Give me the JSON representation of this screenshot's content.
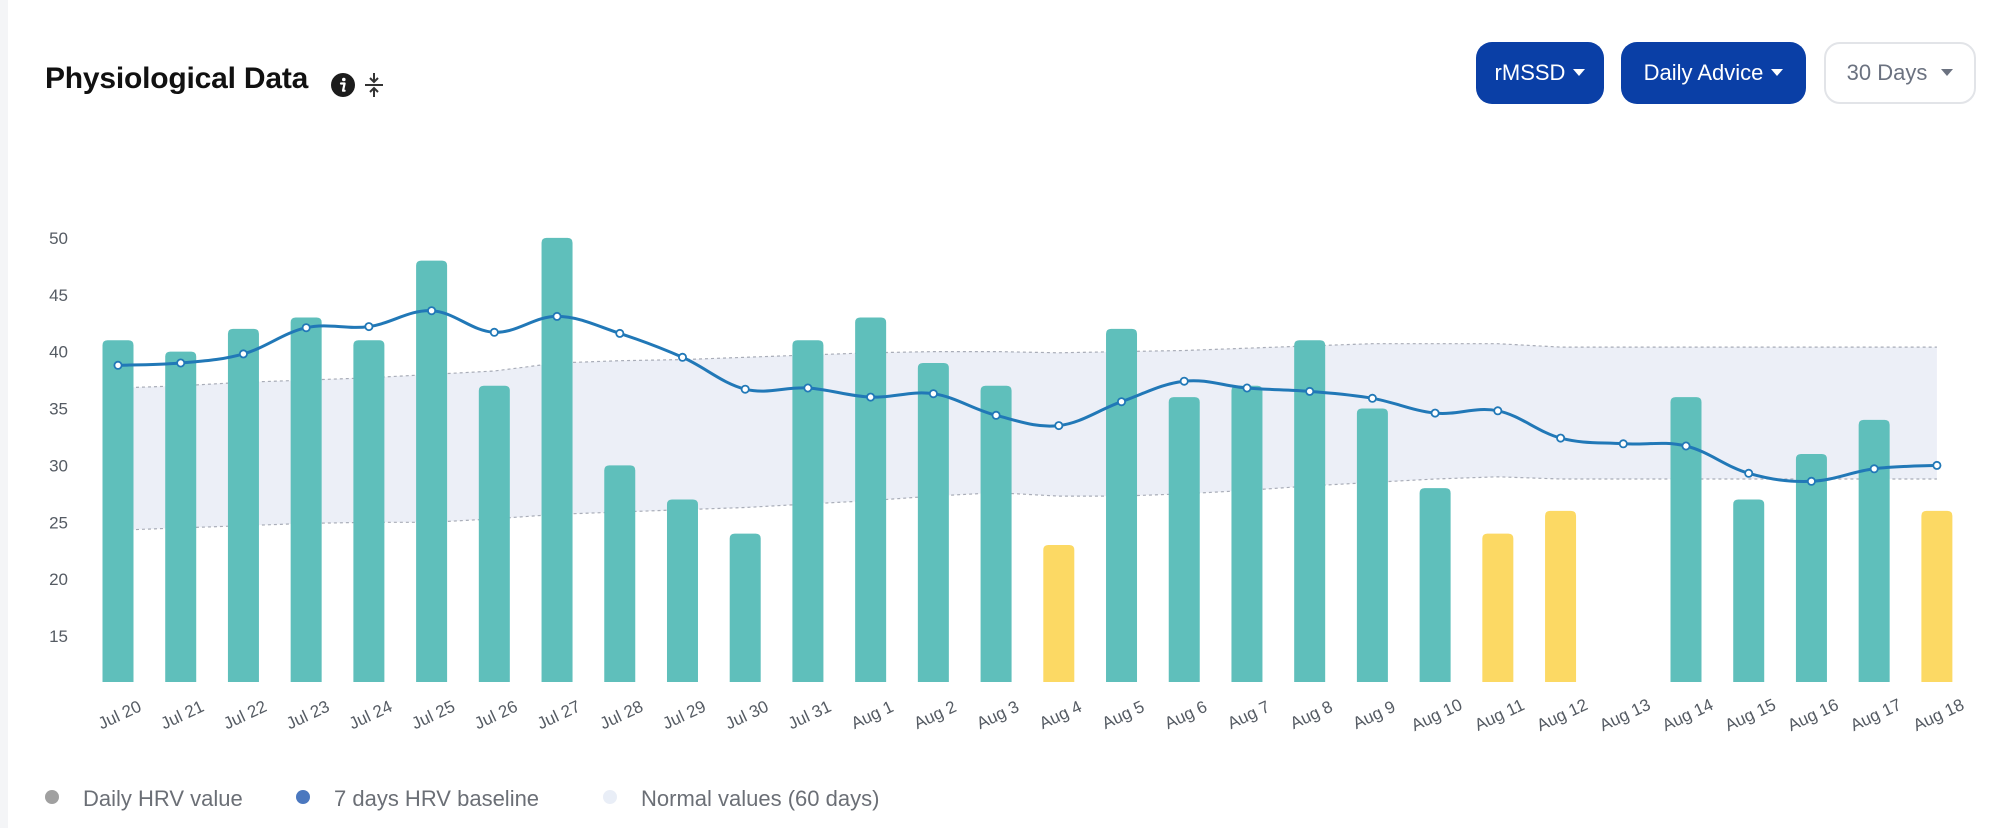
{
  "header": {
    "title": "Physiological Data",
    "metric_button": "rMSSD",
    "advice_button": "Daily Advice",
    "range_button": "30 Days"
  },
  "colors": {
    "primary_button": "#0a3fa6",
    "bar_normal": "#5fbfbb",
    "bar_low": "#fcd964",
    "baseline_line": "#2178b7",
    "normal_band": "#eceff7",
    "legend_daily_dot": "#a0a0a0",
    "legend_baseline_dot": "#4b78bf",
    "legend_normal_dot": "#e9eef7"
  },
  "icons": {
    "info": "info-icon",
    "compress": "compress-vertical-icon"
  },
  "chart_data": {
    "type": "bar",
    "categories": [
      "Jul 20",
      "Jul 21",
      "Jul 22",
      "Jul 23",
      "Jul 24",
      "Jul 25",
      "Jul 26",
      "Jul 27",
      "Jul 28",
      "Jul 29",
      "Jul 30",
      "Jul 31",
      "Aug 1",
      "Aug 2",
      "Aug 3",
      "Aug 4",
      "Aug 5",
      "Aug 6",
      "Aug 7",
      "Aug 8",
      "Aug 9",
      "Aug 10",
      "Aug 11",
      "Aug 12",
      "Aug 13",
      "Aug 14",
      "Aug 15",
      "Aug 16",
      "Aug 17",
      "Aug 18"
    ],
    "series": [
      {
        "name": "Daily HRV value",
        "type": "bar",
        "values": [
          41,
          40,
          42,
          43,
          41,
          48,
          37,
          50,
          30,
          27,
          24,
          41,
          43,
          39,
          37,
          23,
          42,
          36,
          37,
          41,
          35,
          28,
          24,
          26,
          null,
          36,
          27,
          31,
          34,
          26
        ],
        "status": [
          "normal",
          "normal",
          "normal",
          "normal",
          "normal",
          "normal",
          "normal",
          "normal",
          "normal",
          "normal",
          "normal",
          "normal",
          "normal",
          "normal",
          "normal",
          "low",
          "normal",
          "normal",
          "normal",
          "normal",
          "normal",
          "normal",
          "low",
          "low",
          null,
          "normal",
          "normal",
          "normal",
          "normal",
          "low"
        ]
      },
      {
        "name": "7 days HRV baseline",
        "type": "line",
        "values": [
          38.8,
          39.0,
          39.8,
          42.1,
          42.2,
          43.6,
          41.7,
          43.1,
          41.6,
          39.5,
          36.7,
          36.8,
          36.0,
          36.3,
          34.4,
          33.5,
          35.6,
          37.4,
          36.8,
          36.5,
          35.9,
          34.6,
          34.8,
          32.4,
          31.9,
          31.7,
          29.3,
          28.6,
          29.7,
          30.0
        ]
      },
      {
        "name": "Normal values (60 days)",
        "type": "band",
        "upper": [
          36.8,
          37.0,
          37.3,
          37.5,
          37.7,
          38.0,
          38.3,
          39.0,
          39.2,
          39.3,
          39.5,
          39.7,
          39.9,
          40.0,
          40.0,
          39.9,
          40.0,
          40.1,
          40.3,
          40.5,
          40.7,
          40.7,
          40.7,
          40.4,
          40.4,
          40.4,
          40.4,
          40.4,
          40.4,
          40.4
        ],
        "lower": [
          24.3,
          24.5,
          24.7,
          24.9,
          25.0,
          25.0,
          25.3,
          25.7,
          25.9,
          26.1,
          26.3,
          26.6,
          26.9,
          27.3,
          27.6,
          27.3,
          27.3,
          27.5,
          27.8,
          28.2,
          28.5,
          28.8,
          29.0,
          28.8,
          28.8,
          28.8,
          28.8,
          28.8,
          28.8,
          28.8
        ]
      }
    ],
    "y_ticks": [
      15,
      20,
      25,
      30,
      35,
      40,
      45,
      50
    ],
    "ylim": [
      10,
      50
    ],
    "grid": false,
    "legend": "bottom-left"
  }
}
